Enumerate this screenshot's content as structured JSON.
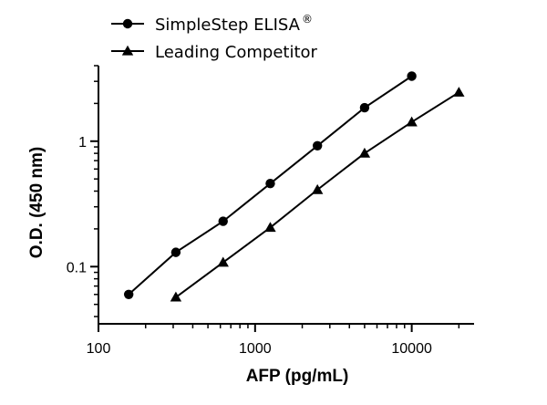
{
  "chart_data": {
    "type": "line",
    "title": "",
    "xlabel": "AFP (pg/mL)",
    "ylabel": "O.D. (450 nm)",
    "xscale": "log",
    "yscale": "log",
    "xlim": [
      100,
      25000
    ],
    "ylim": [
      0.035,
      4.0
    ],
    "xticks": [
      100,
      1000,
      10000
    ],
    "xtick_labels": [
      "100",
      "1000",
      "10000"
    ],
    "yticks": [
      0.1,
      1
    ],
    "ytick_labels": [
      "0.1",
      "1"
    ],
    "grid": false,
    "legend_position": "top-left",
    "series": [
      {
        "name": "SimpleStep ELISA",
        "name_superscript": "®",
        "marker": "circle",
        "color": "#000000",
        "x": [
          156,
          312,
          625,
          1250,
          2500,
          5000,
          10000
        ],
        "y": [
          0.06,
          0.13,
          0.23,
          0.46,
          0.92,
          1.85,
          3.3
        ]
      },
      {
        "name": "Leading Competitor",
        "marker": "triangle",
        "color": "#000000",
        "x": [
          312,
          625,
          1250,
          2500,
          5000,
          10000,
          20000
        ],
        "y": [
          0.057,
          0.108,
          0.205,
          0.41,
          0.8,
          1.42,
          2.45
        ]
      }
    ]
  }
}
